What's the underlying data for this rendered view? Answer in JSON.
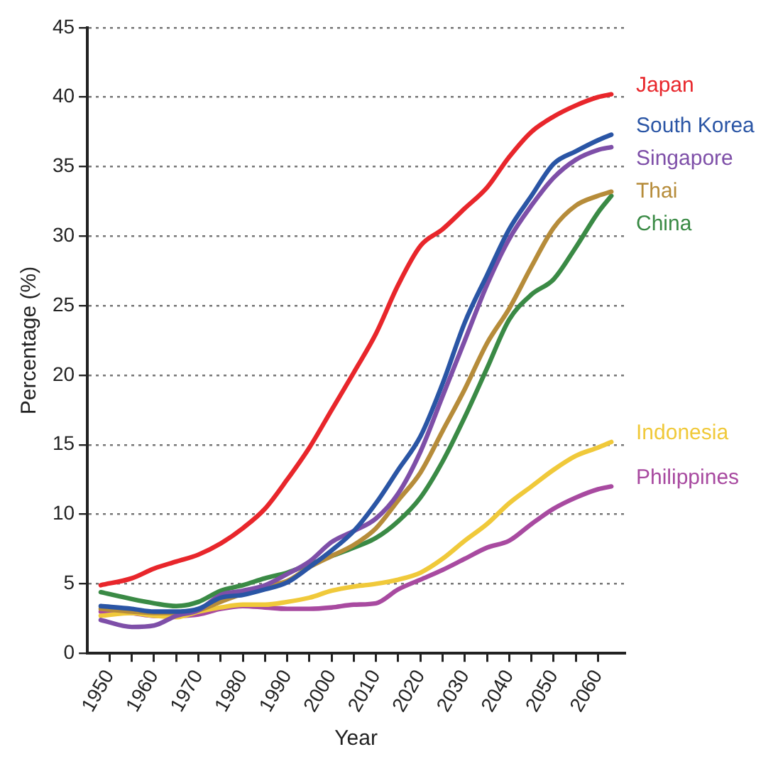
{
  "chart_data": {
    "type": "line",
    "xlabel": "Year",
    "ylabel": "Percentage (%)",
    "x": [
      1948,
      1955,
      1960,
      1965,
      1970,
      1975,
      1980,
      1985,
      1990,
      1995,
      2000,
      2005,
      2010,
      2015,
      2020,
      2025,
      2030,
      2035,
      2040,
      2045,
      2050,
      2055,
      2060,
      2063
    ],
    "series": [
      {
        "name": "Japan",
        "color": "#e8262b",
        "values": [
          4.9,
          5.4,
          6.1,
          6.6,
          7.1,
          7.9,
          9.0,
          10.4,
          12.5,
          14.8,
          17.5,
          20.2,
          23,
          26.5,
          29.3,
          30.5,
          32,
          33.5,
          35.7,
          37.5,
          38.6,
          39.4,
          40,
          40.2
        ]
      },
      {
        "name": "South Korea",
        "color": "#2a55a5",
        "values": [
          3.4,
          3.2,
          3.0,
          3.0,
          3.2,
          4.0,
          4.2,
          4.6,
          5.1,
          6.2,
          7.4,
          8.8,
          10.8,
          13.2,
          15.6,
          19.4,
          23.8,
          27.2,
          30.5,
          32.9,
          35.2,
          36.1,
          36.9,
          37.3
        ]
      },
      {
        "name": "Singapore",
        "color": "#7e4fa8",
        "values": [
          2.4,
          1.9,
          2.0,
          2.7,
          3.1,
          4.2,
          4.5,
          4.9,
          5.7,
          6.6,
          8.0,
          8.8,
          9.7,
          11.5,
          14.5,
          18.5,
          22.5,
          26.5,
          29.8,
          32.2,
          34.2,
          35.5,
          36.2,
          36.4
        ]
      },
      {
        "name": "Thai",
        "color": "#b68c3a",
        "values": [
          3.2,
          3.0,
          2.9,
          2.9,
          3.1,
          3.7,
          4.3,
          4.8,
          5.2,
          6.2,
          7.0,
          7.8,
          9.0,
          11.0,
          13.0,
          16.0,
          19.0,
          22.3,
          24.8,
          27.8,
          30.6,
          32.2,
          32.9,
          33.2
        ]
      },
      {
        "name": "China",
        "color": "#3a8a45",
        "values": [
          4.4,
          3.9,
          3.6,
          3.4,
          3.7,
          4.5,
          4.9,
          5.4,
          5.8,
          6.4,
          7.0,
          7.6,
          8.3,
          9.5,
          11.2,
          13.8,
          17.0,
          20.5,
          24,
          25.8,
          26.9,
          29.2,
          31.7,
          32.9
        ]
      },
      {
        "name": "Indonesia",
        "color": "#f0c93a",
        "values": [
          2.7,
          2.9,
          2.7,
          2.6,
          3.0,
          3.3,
          3.5,
          3.5,
          3.7,
          4.0,
          4.5,
          4.8,
          5.0,
          5.3,
          5.8,
          6.8,
          8.1,
          9.3,
          10.8,
          12.0,
          13.2,
          14.2,
          14.8,
          15.2
        ]
      },
      {
        "name": "Philippines",
        "color": "#a84aa0",
        "values": [
          3.0,
          2.9,
          2.7,
          2.7,
          2.8,
          3.2,
          3.4,
          3.3,
          3.2,
          3.2,
          3.3,
          3.5,
          3.6,
          4.6,
          5.3,
          6.0,
          6.8,
          7.6,
          8.1,
          9.3,
          10.4,
          11.2,
          11.8,
          12.0
        ]
      }
    ],
    "xlim": [
      1945,
      2066
    ],
    "xticks": [
      1950,
      {
        "value": 1955,
        "label": null
      },
      1960,
      {
        "value": 1965,
        "label": null
      },
      1970,
      {
        "value": 1975,
        "label": null
      },
      1980,
      {
        "value": 1985,
        "label": null
      },
      1990,
      {
        "value": 1995,
        "label": null
      },
      2000,
      {
        "value": 2005,
        "label": null
      },
      2010,
      {
        "value": 2015,
        "label": null
      },
      2020,
      {
        "value": 2025,
        "label": null
      },
      2030,
      {
        "value": 2035,
        "label": null
      },
      2040,
      {
        "value": 2045,
        "label": null
      },
      2050,
      {
        "value": 2055,
        "label": null
      },
      2060
    ],
    "ylim": [
      0,
      45
    ],
    "yticks": [
      0,
      5,
      10,
      15,
      20,
      25,
      30,
      35,
      40,
      45
    ],
    "grid": "y",
    "legend": false,
    "marker": "none",
    "line_style": "solid"
  }
}
